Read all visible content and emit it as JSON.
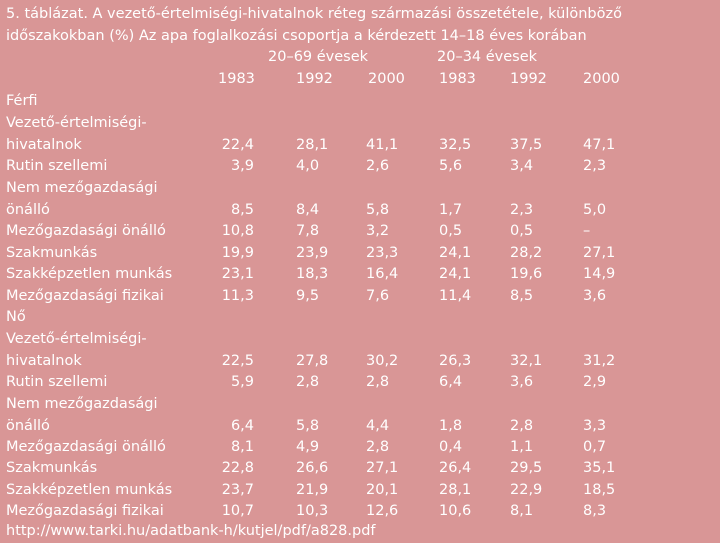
{
  "caption": {
    "line1": "5. táblázat. A vezető-értelmiségi-hivatalnok réteg származási összetétele, különböző",
    "line2": "időszakokban (%) Az apa foglalkozási csoportja a kérdezett 14–18 éves korában"
  },
  "groups": [
    "20–69 évesek",
    "20–34 évesek"
  ],
  "years": [
    "1983",
    "1992",
    "2000",
    "1983",
    "1992",
    "2000"
  ],
  "sections": {
    "male": "Férfi",
    "female": "Nő"
  },
  "rows": [
    {
      "label1": "Vezető-értelmiségi-",
      "label2": "hivatalnok",
      "values": [
        "22,4",
        "28,1",
        "41,1",
        "32,5",
        "37,5",
        "47,1"
      ]
    },
    {
      "label1": "Rutin szellemi",
      "values": [
        "3,9",
        "4,0",
        "2,6",
        "5,6",
        "3,4",
        "2,3"
      ]
    },
    {
      "label1": "Nem mezőgazdasági",
      "label2": "önálló",
      "values": [
        "8,5",
        "8,4",
        "5,8",
        "1,7",
        "2,3",
        "5,0"
      ]
    },
    {
      "label1": "Mezőgazdasági önálló",
      "values": [
        "10,8",
        "7,8",
        "3,2",
        "0,5",
        "0,5",
        "–"
      ]
    },
    {
      "label1": "Szakmunkás",
      "values": [
        "19,9",
        "23,9",
        "23,3",
        "24,1",
        "28,2",
        "27,1"
      ]
    },
    {
      "label1": "Szakképzetlen munkás",
      "values": [
        "23,1",
        "18,3",
        "16,4",
        "24,1",
        "19,6",
        "14,9"
      ]
    },
    {
      "label1": "Mezőgazdasági fizikai",
      "values": [
        "11,3",
        "9,5",
        "7,6",
        "11,4",
        "8,5",
        "3,6"
      ]
    },
    {
      "label1": "Vezető-értelmiségi-",
      "label2": "hivatalnok",
      "values": [
        "22,5",
        "27,8",
        "30,2",
        "26,3",
        "32,1",
        "31,2"
      ]
    },
    {
      "label1": "Rutin szellemi",
      "values": [
        "5,9",
        "2,8",
        "2,8",
        "6,4",
        "3,6",
        "2,9"
      ]
    },
    {
      "label1": "Nem mezőgazdasági",
      "label2": "önálló",
      "values": [
        "6,4",
        "5,8",
        "4,4",
        "1,8",
        "2,8",
        "3,3"
      ]
    },
    {
      "label1": "Mezőgazdasági önálló",
      "values": [
        "8,1",
        "4,9",
        "2,8",
        "0,4",
        "1,1",
        "0,7"
      ]
    },
    {
      "label1": "Szakmunkás",
      "values": [
        "22,8",
        "26,6",
        "27,1",
        "26,4",
        "29,5",
        "35,1"
      ]
    },
    {
      "label1": "Szakképzetlen munkás",
      "values": [
        "23,7",
        "21,9",
        "20,1",
        "28,1",
        "22,9",
        "18,5"
      ]
    },
    {
      "label1": "Mezőgazdasági fizikai",
      "values": [
        "10,7",
        "10,3",
        "12,6",
        "10,6",
        "8,1",
        "8,3"
      ]
    }
  ],
  "source": "http://www.tarki.hu/adatbank-h/kutjel/pdf/a828.pdf"
}
